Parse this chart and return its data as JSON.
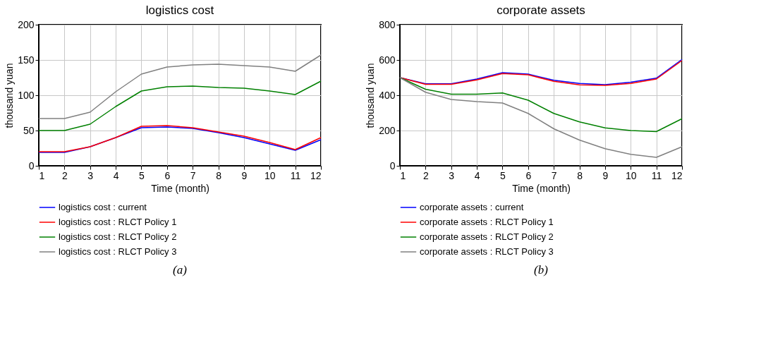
{
  "chart_data": [
    {
      "type": "line",
      "title": "logistics cost",
      "xlabel": "Time (month)",
      "ylabel": "thousand yuan",
      "x": [
        1,
        2,
        3,
        4,
        5,
        6,
        7,
        8,
        9,
        10,
        11,
        12
      ],
      "xlim": [
        1,
        12
      ],
      "xticks": [
        1,
        2,
        3,
        4,
        5,
        6,
        7,
        8,
        9,
        10,
        11,
        12
      ],
      "ylim": [
        0,
        200
      ],
      "yticks": [
        0,
        50,
        100,
        150,
        200
      ],
      "grid": true,
      "legend": "bottom",
      "annotations": [
        "(a)"
      ],
      "series": [
        {
          "name": "logistics cost : current",
          "color": "#0000ff",
          "values": [
            19,
            19,
            27,
            40,
            54,
            55,
            53,
            47,
            40,
            31,
            22,
            37
          ]
        },
        {
          "name": "logistics cost : RLCT Policy 1",
          "color": "#ff0000",
          "values": [
            20,
            20,
            27,
            40,
            56,
            57,
            54,
            48,
            42,
            33,
            23,
            40
          ]
        },
        {
          "name": "logistics cost : RLCT Policy 2",
          "color": "#008000",
          "values": [
            50,
            50,
            59,
            84,
            106,
            112,
            113,
            111,
            110,
            106,
            101,
            120
          ]
        },
        {
          "name": "logistics cost : RLCT Policy 3",
          "color": "#808080",
          "values": [
            67,
            67,
            76,
            105,
            130,
            140,
            143,
            144,
            142,
            140,
            134,
            157
          ]
        }
      ]
    },
    {
      "type": "line",
      "title": "corporate assets",
      "xlabel": "Time (month)",
      "ylabel": "thousand yuan",
      "x": [
        1,
        2,
        3,
        4,
        5,
        6,
        7,
        8,
        9,
        10,
        11,
        12
      ],
      "xlim": [
        1,
        12
      ],
      "xticks": [
        1,
        2,
        3,
        4,
        5,
        6,
        7,
        8,
        9,
        10,
        11,
        12
      ],
      "ylim": [
        0,
        800
      ],
      "yticks": [
        0,
        200,
        400,
        600,
        800
      ],
      "grid": true,
      "legend": "bottom",
      "annotations": [
        "(b)"
      ],
      "series": [
        {
          "name": "corporate assets : current",
          "color": "#0000ff",
          "values": [
            500,
            465,
            465,
            492,
            528,
            520,
            485,
            467,
            460,
            474,
            497,
            603
          ]
        },
        {
          "name": "corporate assets : RLCT Policy 1",
          "color": "#ff0000",
          "values": [
            500,
            462,
            462,
            487,
            523,
            516,
            479,
            459,
            456,
            467,
            492,
            597
          ]
        },
        {
          "name": "corporate assets : RLCT Policy 2",
          "color": "#008000",
          "values": [
            500,
            434,
            406,
            406,
            413,
            372,
            297,
            249,
            215,
            200,
            194,
            267
          ]
        },
        {
          "name": "corporate assets : RLCT Policy 3",
          "color": "#808080",
          "values": [
            500,
            417,
            376,
            364,
            356,
            297,
            210,
            146,
            97,
            65,
            48,
            108
          ]
        }
      ]
    }
  ]
}
